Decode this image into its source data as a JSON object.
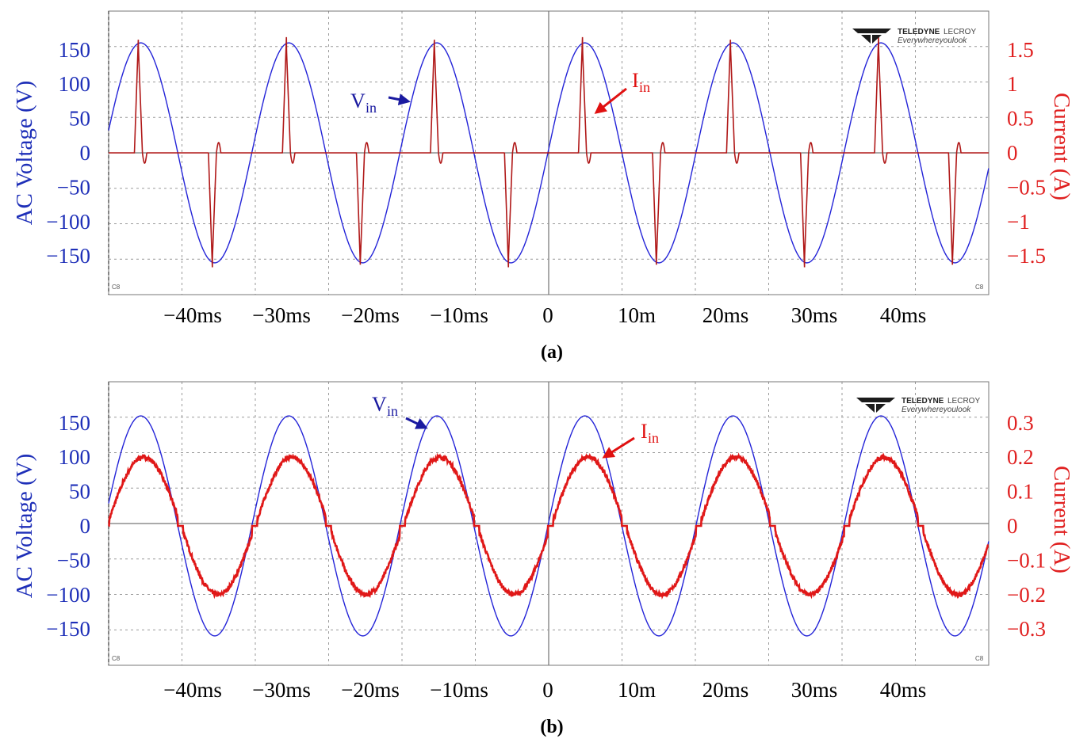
{
  "brand": {
    "name": "TELEDYNE",
    "name2": "LECROY",
    "tagline": "Everywhereyoulook",
    "corner_tag": "C8"
  },
  "chart_data": [
    {
      "id": "a",
      "type": "line",
      "caption": "(a)",
      "ylabel_left": "AC Voltage (V)",
      "ylabel_right": "Current (A)",
      "x_unit": "ms",
      "xlim": [
        -50,
        50
      ],
      "x_ticks": [
        {
          "value": -40,
          "label": "−40ms"
        },
        {
          "value": -30,
          "label": "−30ms"
        },
        {
          "value": -20,
          "label": "−20ms"
        },
        {
          "value": -10,
          "label": "−10ms"
        },
        {
          "value": 0,
          "label": "0"
        },
        {
          "value": 10,
          "label": "10m"
        },
        {
          "value": 20,
          "label": "20ms"
        },
        {
          "value": 30,
          "label": "30ms"
        },
        {
          "value": 40,
          "label": "40ms"
        }
      ],
      "ylim_left": [
        -205,
        205
      ],
      "ylim_right": [
        -2.05,
        2.05
      ],
      "left_ticks": [
        {
          "value": 150,
          "label": "150"
        },
        {
          "value": 100,
          "label": "100"
        },
        {
          "value": 50,
          "label": "50"
        },
        {
          "value": 0,
          "label": "0"
        },
        {
          "value": -50,
          "label": "−50"
        },
        {
          "value": -100,
          "label": "−100"
        },
        {
          "value": -150,
          "label": "−150"
        }
      ],
      "right_ticks": [
        {
          "value": 1.5,
          "label": "1.5"
        },
        {
          "value": 1,
          "label": "1"
        },
        {
          "value": 0.5,
          "label": "0.5"
        },
        {
          "value": 0,
          "label": "0"
        },
        {
          "value": -0.5,
          "label": "−0.5"
        },
        {
          "value": -1,
          "label": "−1"
        },
        {
          "value": -1.5,
          "label": "−1.5"
        }
      ],
      "series": [
        {
          "name": "Vin",
          "axis": "left",
          "shape": "sine",
          "amplitude": 160,
          "period_ms": 16.67,
          "zero_cross_ms": 0,
          "color": "#2424d8"
        },
        {
          "name": "Iin",
          "axis": "right",
          "shape": "pulse",
          "peak": 1.7,
          "pulse_width_ms": 0.9,
          "period_ms": 16.67,
          "pulse_phase_ms": 3.9,
          "color": "#b01818"
        }
      ],
      "annotations": [
        {
          "text": "V",
          "sub": "in",
          "color": "#1a1aa0",
          "target": "Vin"
        },
        {
          "text": "I",
          "sub": "in",
          "color": "#e01010",
          "target": "Iin"
        }
      ]
    },
    {
      "id": "b",
      "type": "line",
      "caption": "(b)",
      "ylabel_left": "AC Voltage (V)",
      "ylabel_right": "Current (A)",
      "x_unit": "ms",
      "xlim": [
        -50,
        50
      ],
      "x_ticks": [
        {
          "value": -40,
          "label": "−40ms"
        },
        {
          "value": -30,
          "label": "−30ms"
        },
        {
          "value": -20,
          "label": "−20ms"
        },
        {
          "value": -10,
          "label": "−10ms"
        },
        {
          "value": 0,
          "label": "0"
        },
        {
          "value": 10,
          "label": "10m"
        },
        {
          "value": 20,
          "label": "20ms"
        },
        {
          "value": 30,
          "label": "30ms"
        },
        {
          "value": 40,
          "label": "40ms"
        }
      ],
      "ylim_left": [
        -205,
        205
      ],
      "ylim_right": [
        -0.41,
        0.41
      ],
      "left_ticks": [
        {
          "value": 150,
          "label": "150"
        },
        {
          "value": 100,
          "label": "100"
        },
        {
          "value": 50,
          "label": "50"
        },
        {
          "value": 0,
          "label": "0"
        },
        {
          "value": -50,
          "label": "−50"
        },
        {
          "value": -100,
          "label": "−100"
        },
        {
          "value": -150,
          "label": "−150"
        }
      ],
      "right_ticks": [
        {
          "value": 0.3,
          "label": "0.3"
        },
        {
          "value": 0.2,
          "label": "0.2"
        },
        {
          "value": 0.1,
          "label": "0.1"
        },
        {
          "value": 0,
          "label": "0"
        },
        {
          "value": -0.1,
          "label": "−0.1"
        },
        {
          "value": -0.2,
          "label": "−0.2"
        },
        {
          "value": -0.3,
          "label": "−0.3"
        }
      ],
      "series": [
        {
          "name": "Vin",
          "axis": "left",
          "shape": "sine",
          "amplitude": 160,
          "period_ms": 16.67,
          "zero_cross_ms": 0,
          "color": "#2424d8"
        },
        {
          "name": "Iin",
          "axis": "right",
          "shape": "sine_deadzone",
          "amplitude": 0.2,
          "deadzone_ms": 0.6,
          "period_ms": 16.67,
          "zero_cross_ms": 0,
          "color": "#e01818"
        }
      ],
      "annotations": [
        {
          "text": "V",
          "sub": "in",
          "color": "#1a1aa0",
          "target": "Vin"
        },
        {
          "text": "I",
          "sub": "in",
          "color": "#e01010",
          "target": "Iin"
        }
      ]
    }
  ]
}
